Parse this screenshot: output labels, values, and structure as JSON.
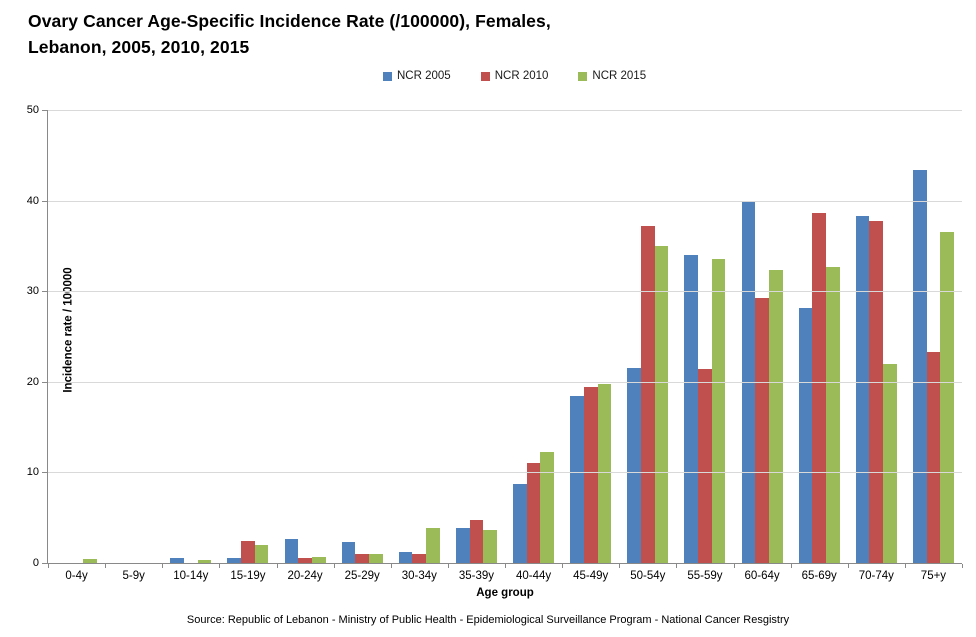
{
  "chart_data": {
    "type": "bar",
    "title_line1": "Ovary Cancer Age-Specific Incidence Rate (/100000), Females,",
    "title_line2": "Lebanon, 2005, 2010, 2015",
    "categories": [
      "0-4y",
      "5-9y",
      "10-14y",
      "15-19y",
      "20-24y",
      "25-29y",
      "30-34y",
      "35-39y",
      "40-44y",
      "45-49y",
      "50-54y",
      "55-59y",
      "60-64y",
      "65-69y",
      "70-74y",
      "75+y"
    ],
    "series": [
      {
        "name": "NCR 2005",
        "color": "#4F81BD",
        "values": [
          0,
          0,
          0.5,
          0.6,
          2.6,
          2.3,
          1.2,
          3.9,
          8.7,
          18.4,
          21.5,
          34.0,
          40.0,
          28.2,
          38.3,
          43.4
        ]
      },
      {
        "name": "NCR 2010",
        "color": "#C0504D",
        "values": [
          0,
          0,
          0,
          2.4,
          0.5,
          1.0,
          1.0,
          4.8,
          11.0,
          19.4,
          37.2,
          21.4,
          29.2,
          38.6,
          37.7,
          23.3
        ]
      },
      {
        "name": "NCR 2015",
        "color": "#9BBB59",
        "values": [
          0.4,
          0,
          0.35,
          2.0,
          0.65,
          1.0,
          3.9,
          3.6,
          12.3,
          19.8,
          35.0,
          33.6,
          32.3,
          32.7,
          22.0,
          36.5
        ]
      }
    ],
    "xlabel": "Age group",
    "ylabel": "Incidence rate / 100000",
    "ylim": [
      0,
      50
    ],
    "yticks": [
      0,
      10,
      20,
      30,
      40,
      50
    ],
    "grid": true,
    "legend_position": "top",
    "source": "Source: Republic of Lebanon - Ministry of Public Health - Epidemiological Surveillance Program - National Cancer Resgistry"
  },
  "colors": {
    "axis": "#898989",
    "gridline": "#D9D9D9",
    "text": "#000000",
    "background": "#FFFFFF"
  }
}
